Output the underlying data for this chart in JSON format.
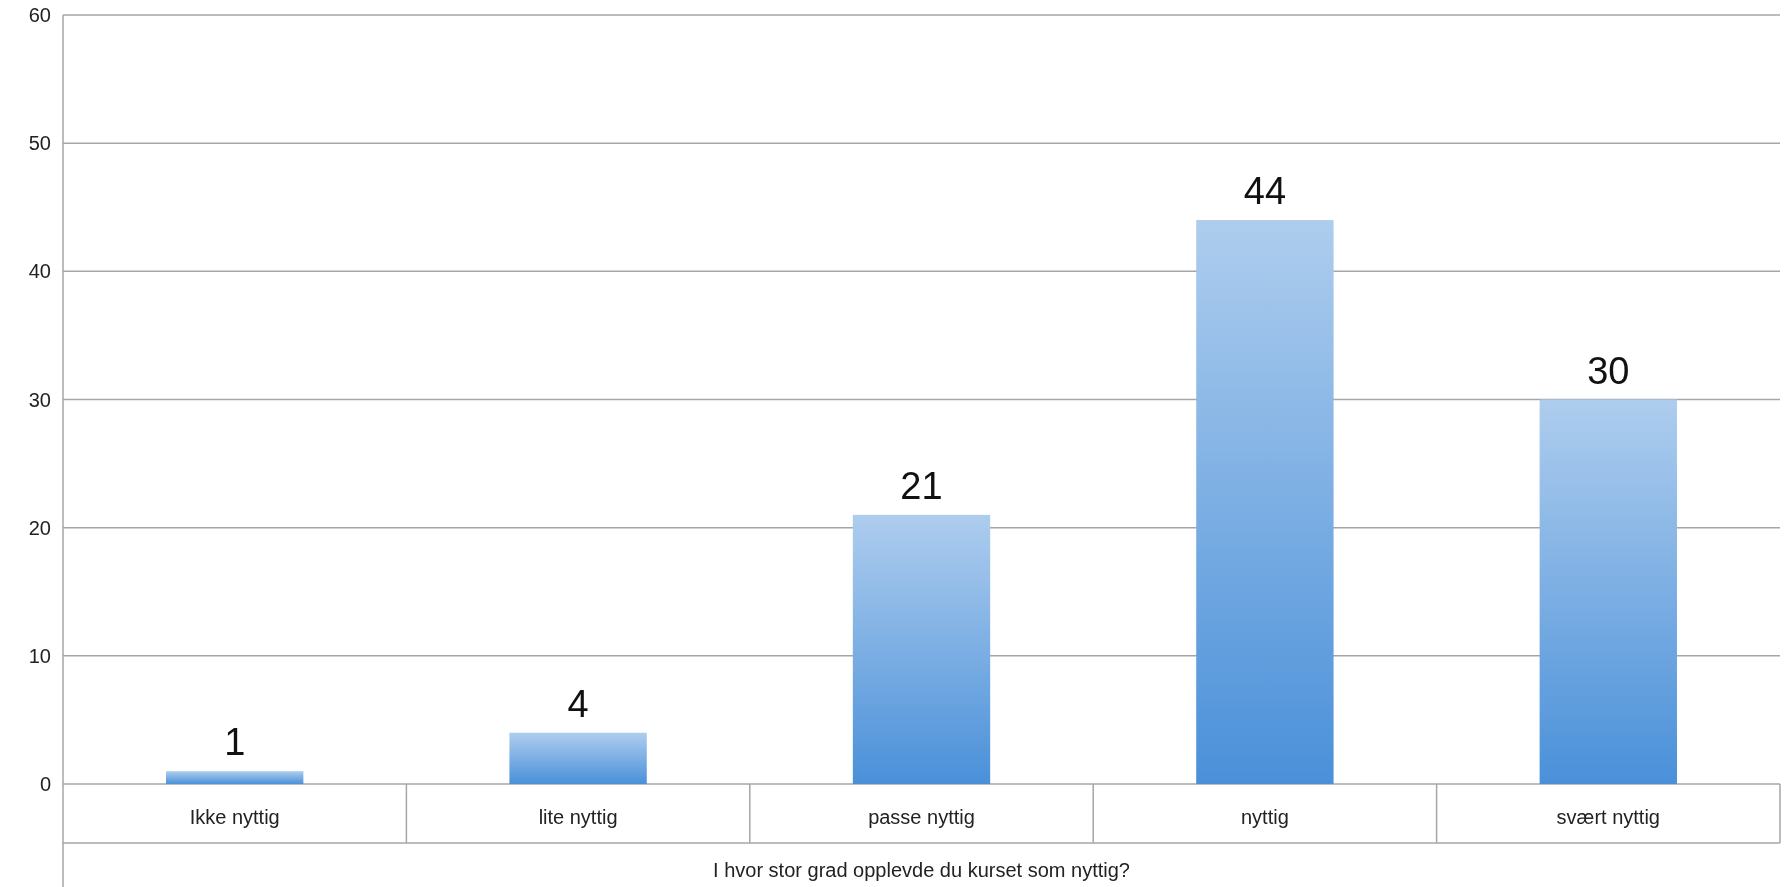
{
  "chart_data": {
    "type": "bar",
    "xlabel": "I hvor stor grad opplevde du kurset som nyttig?",
    "categories": [
      "Ikke nyttig",
      "lite nyttig",
      "passe nyttig",
      "nyttig",
      "svært nyttig"
    ],
    "values": [
      1,
      4,
      21,
      44,
      30
    ],
    "color": "#4a90d9",
    "ylim": [
      0,
      60
    ],
    "yticks": [
      0,
      10,
      20,
      30,
      40,
      50,
      60
    ],
    "grid": "y",
    "data_labels": true
  }
}
